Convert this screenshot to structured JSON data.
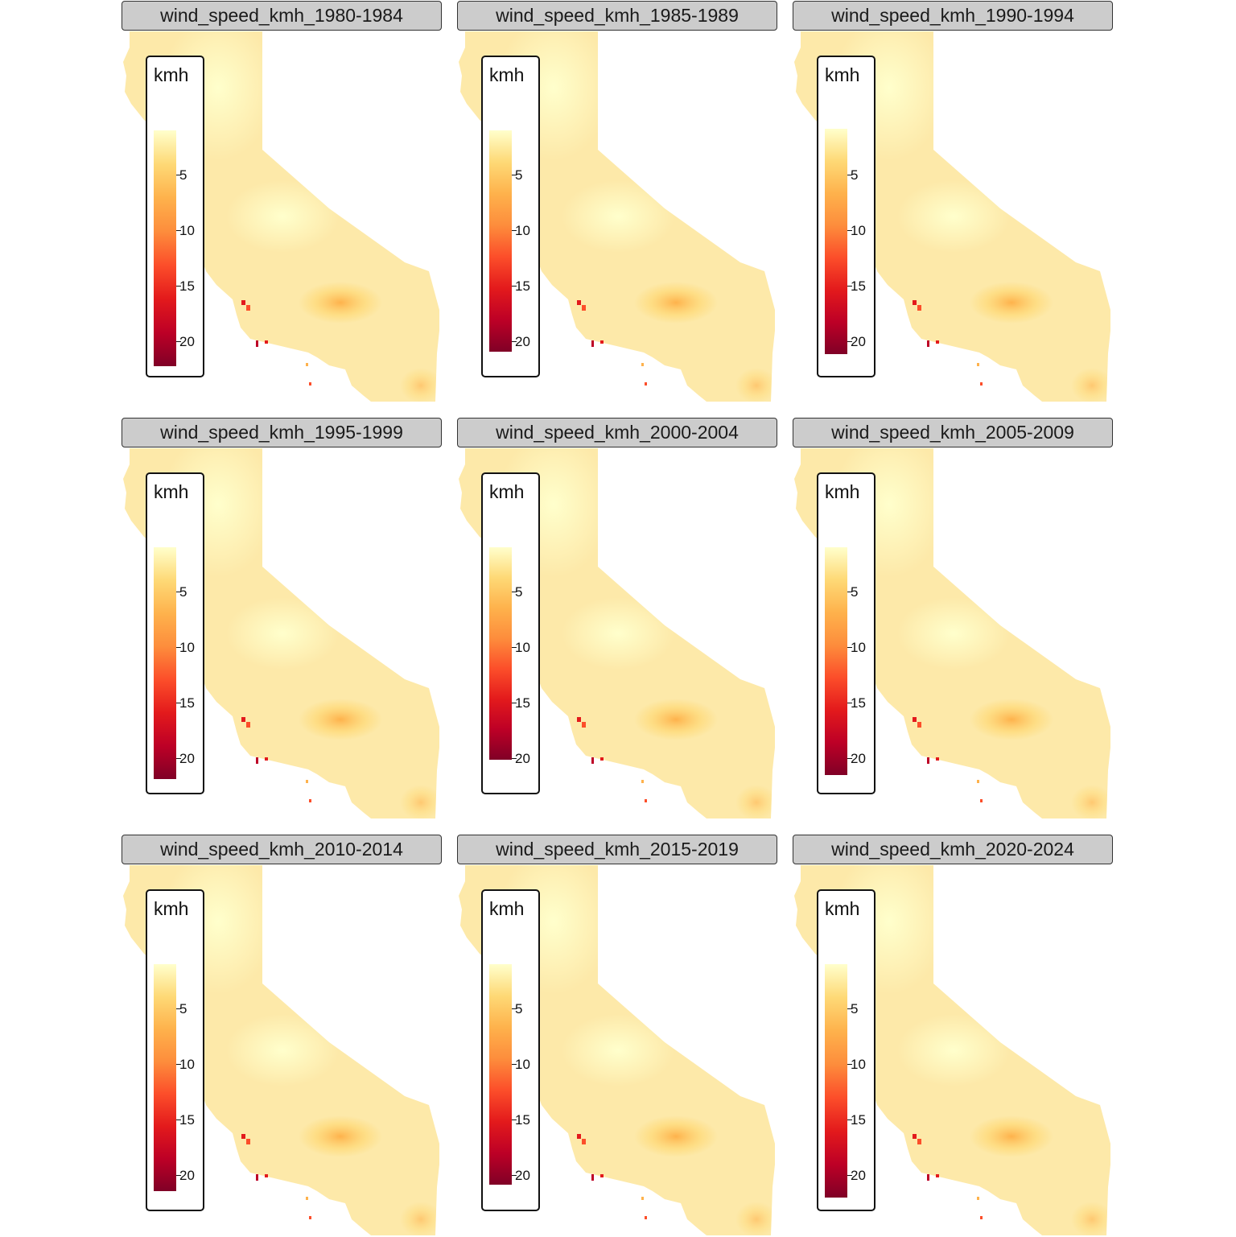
{
  "colors": {
    "land_base": "#fde9a9",
    "ramp": [
      "#ffffcc",
      "#fed976",
      "#feb24c",
      "#fd8d3c",
      "#fc4e2a",
      "#e31a1c",
      "#bd0026",
      "#800026"
    ]
  },
  "legend_title": "kmh",
  "legend_ticks": [
    "5",
    "10",
    "15",
    "20"
  ],
  "panels": [
    {
      "title": "wind_speed_kmh_1980-1984"
    },
    {
      "title": "wind_speed_kmh_1985-1989"
    },
    {
      "title": "wind_speed_kmh_1990-1994"
    },
    {
      "title": "wind_speed_kmh_1995-1999"
    },
    {
      "title": "wind_speed_kmh_2000-2004"
    },
    {
      "title": "wind_speed_kmh_2005-2009"
    },
    {
      "title": "wind_speed_kmh_2010-2014"
    },
    {
      "title": "wind_speed_kmh_2015-2019"
    },
    {
      "title": "wind_speed_kmh_2020-2024"
    }
  ]
}
